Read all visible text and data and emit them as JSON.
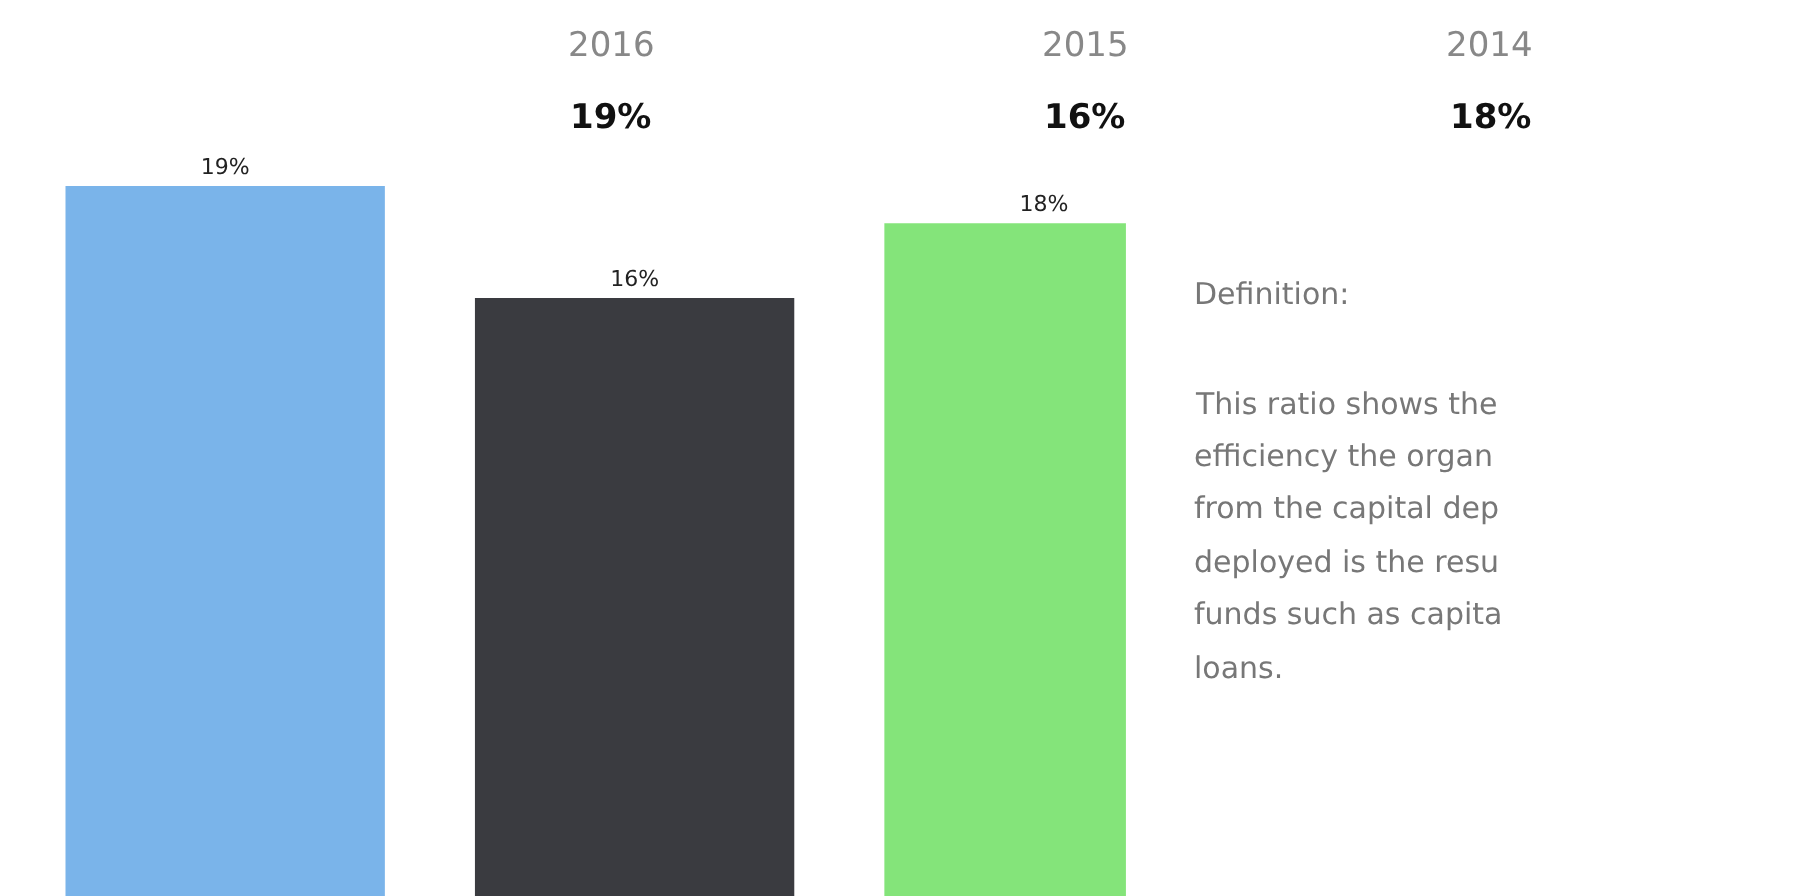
{
  "chart_data": {
    "type": "bar",
    "categories": [
      null,
      null,
      null
    ],
    "values": [
      19,
      16,
      18
    ],
    "colors": [
      "#7ab4ea",
      "#3a3b40",
      "#84e47a"
    ],
    "value_labels": [
      "19%",
      "16%",
      "18%"
    ],
    "tick_labels": false,
    "legend": false,
    "annotations": [
      "2016",
      "19%",
      "2015",
      "16%",
      "2014",
      "18%",
      "Definition:",
      "This ratio shows the",
      "efficiency the organ",
      "from the capital dep",
      "deployed is the resu",
      "funds such as capita",
      "loans."
    ]
  }
}
